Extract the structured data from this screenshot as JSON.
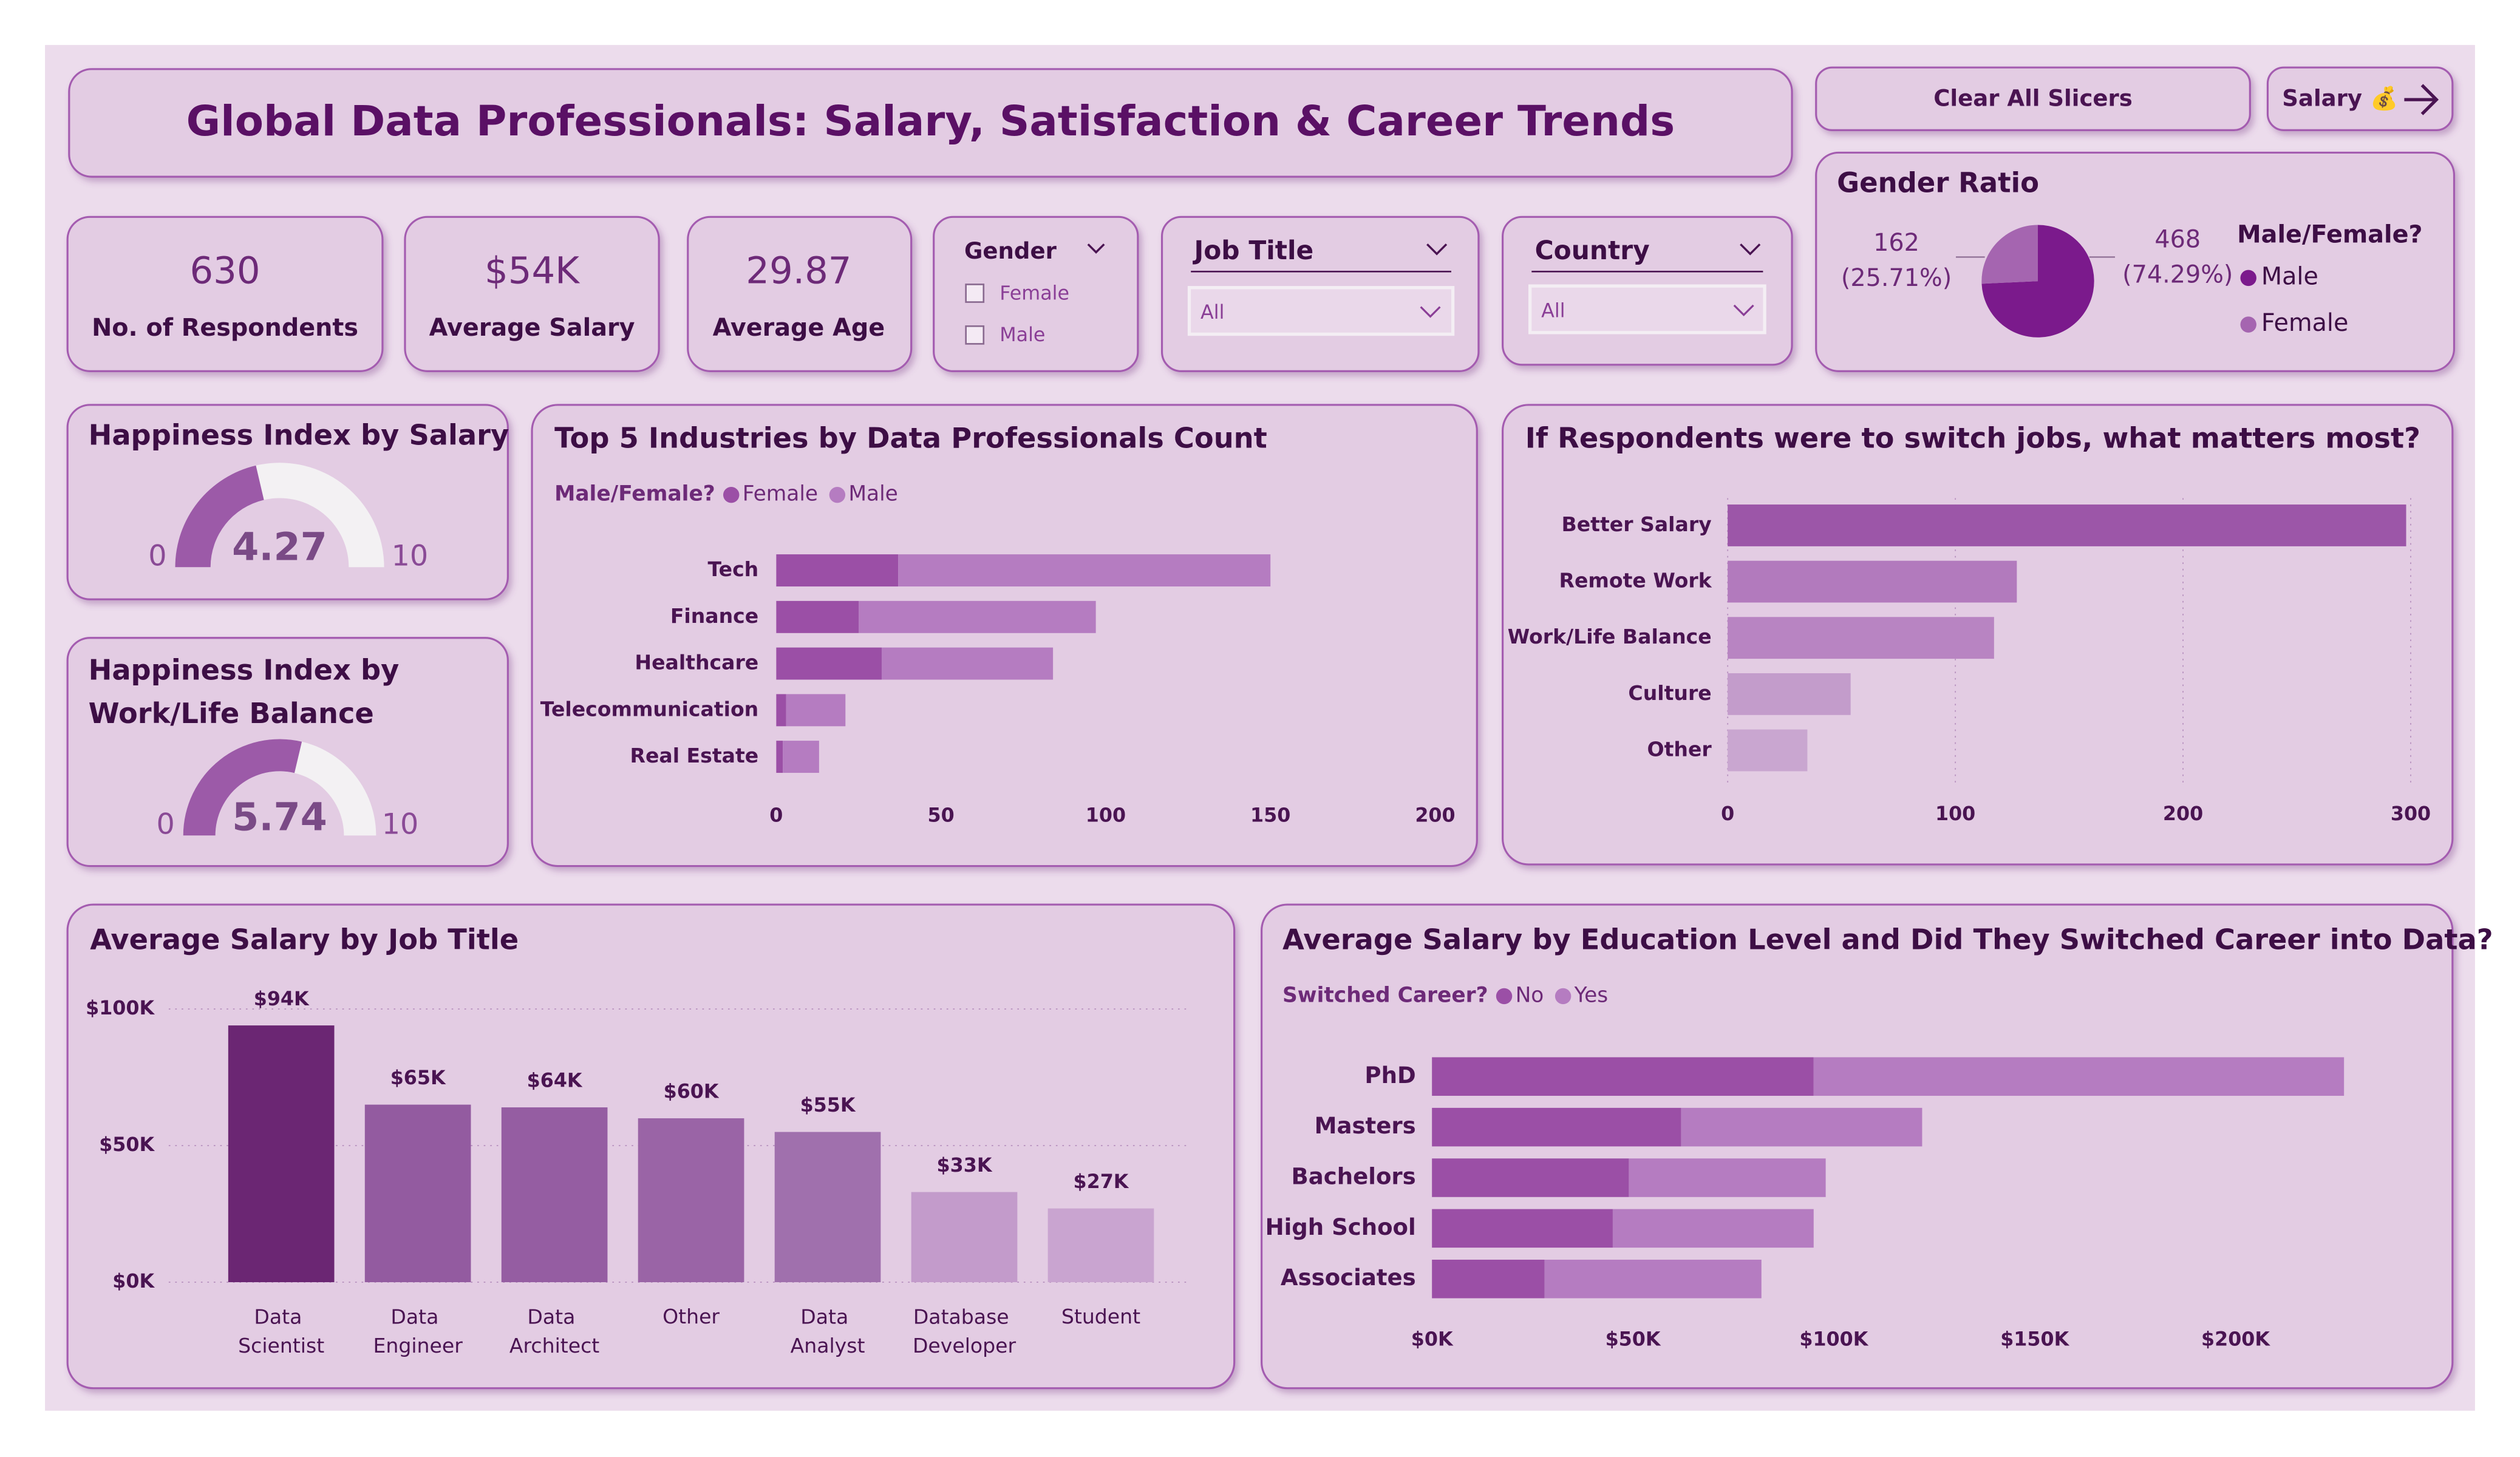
{
  "header": {
    "title": "Global Data Professionals: Salary, Satisfaction & Career Trends"
  },
  "buttons": [
    "Clear All Slicers",
    "Salary 💰"
  ],
  "kpis": [
    {
      "value": "630",
      "label": "No. of Respondents"
    },
    {
      "value": "$54K",
      "label": "Average Salary"
    },
    {
      "value": "29.87",
      "label": "Average Age"
    }
  ],
  "slicers": {
    "gender": {
      "title": "Gender",
      "options": [
        "Female",
        "Male"
      ]
    },
    "job_title": {
      "title": "Job Title",
      "selected": "All"
    },
    "country": {
      "title": "Country",
      "selected": "All"
    }
  },
  "chart_data": [
    {
      "type": "gauge",
      "title": "Happiness Index by Salary",
      "value": 4.27,
      "min": 0,
      "max": 10,
      "color": "#9c5aa8",
      "track_color": "#f3f1f3"
    },
    {
      "type": "gauge",
      "title": "Happiness Index by Work/Life Balance",
      "value": 5.74,
      "min": 0,
      "max": 10,
      "color": "#9c5aa8",
      "track_color": "#f3f1f3"
    },
    {
      "type": "pie",
      "title": "Gender Ratio",
      "legend_title": "Male/Female?",
      "categories": [
        "Male",
        "Female"
      ],
      "values": [
        468,
        162
      ],
      "percent_labels": [
        "(74.29%)",
        "(25.71%)"
      ],
      "colors": [
        "#7b1a8c",
        "#a565b0"
      ]
    },
    {
      "type": "stacked_bar_h",
      "title": "Top 5 Industries by Data Professionals Count",
      "legend_title": "Male/Female?",
      "categories": [
        "Tech",
        "Finance",
        "Healthcare",
        "Telecommunication",
        "Real Estate"
      ],
      "series": [
        {
          "name": "Female",
          "color": "#9b4fa6",
          "values": [
            37,
            25,
            32,
            3,
            2
          ]
        },
        {
          "name": "Male",
          "color": "#b57cc1",
          "values": [
            113,
            72,
            52,
            18,
            11
          ]
        }
      ],
      "xlim": [
        0,
        200
      ],
      "xticks": [
        0,
        50,
        100,
        150,
        200
      ]
    },
    {
      "type": "bar_h",
      "title": "If Respondents were to switch jobs, what matters most?",
      "categories": [
        "Better Salary",
        "Remote Work",
        "Work/Life Balance",
        "Culture",
        "Other"
      ],
      "values": [
        298,
        127,
        117,
        54,
        35
      ],
      "colors": [
        "#9c56a8",
        "#b27abd",
        "#b884c2",
        "#c39ccb",
        "#c9a6d0"
      ],
      "xlim": [
        0,
        300
      ],
      "xticks": [
        0,
        100,
        200,
        300
      ],
      "grid": true
    },
    {
      "type": "bar",
      "title": "Average Salary by Job Title",
      "categories": [
        "Data Scientist",
        "Data Engineer",
        "Data Architect",
        "Other",
        "Data Analyst",
        "Database Developer",
        "Student"
      ],
      "values": [
        94000,
        65000,
        64000,
        60000,
        55000,
        33000,
        27000
      ],
      "value_labels": [
        "$94K",
        "$65K",
        "$64K",
        "$60K",
        "$55K",
        "$33K",
        "$27K"
      ],
      "colors": [
        "#6b2673",
        "#935ba0",
        "#955da2",
        "#9a64a6",
        "#a070ad",
        "#c39bcb",
        "#c9a4d0"
      ],
      "ylim": [
        0,
        100000
      ],
      "yticks": [
        {
          "value": 0,
          "label": "$0K"
        },
        {
          "value": 50000,
          "label": "$50K"
        },
        {
          "value": 100000,
          "label": "$100K"
        }
      ],
      "grid": true
    },
    {
      "type": "stacked_bar_h",
      "title": "Average Salary by Education Level and Did They Switched Career into Data?",
      "legend_title": "Switched Career?",
      "categories": [
        "PhD",
        "Masters",
        "Bachelors",
        "High School",
        "Associates"
      ],
      "series": [
        {
          "name": "No",
          "color": "#9b4fa6",
          "values": [
            95000,
            62000,
            49000,
            45000,
            28000
          ]
        },
        {
          "name": "Yes",
          "color": "#b57cc1",
          "values": [
            132000,
            60000,
            49000,
            50000,
            54000
          ]
        }
      ],
      "xlim": [
        0,
        240000
      ],
      "xticks": [
        {
          "value": 0,
          "label": "$0K"
        },
        {
          "value": 50000,
          "label": "$50K"
        },
        {
          "value": 100000,
          "label": "$100K"
        },
        {
          "value": 150000,
          "label": "$150K"
        },
        {
          "value": 200000,
          "label": "$200K"
        }
      ]
    }
  ]
}
